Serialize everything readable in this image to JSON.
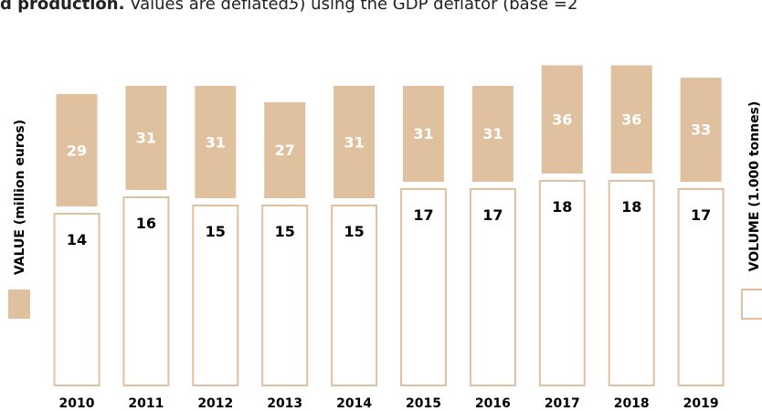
{
  "header": {
    "bold_text": "d production.",
    "plain_text": " Values are deflated",
    "italic_text": "5",
    "rest_text": ") using the GDP deflator (base =2"
  },
  "colors": {
    "value": "#dfc09f",
    "volume_fill": "#ffffff",
    "volume_stroke": "#dfc09f"
  },
  "chart_data": {
    "type": "bar",
    "categories": [
      "2010",
      "2011",
      "2012",
      "2013",
      "2014",
      "2015",
      "2016",
      "2017",
      "2018",
      "2019"
    ],
    "series": [
      {
        "name": "VALUE (million euros)",
        "values": [
          29,
          31,
          31,
          27,
          31,
          31,
          31,
          36,
          36,
          33
        ]
      },
      {
        "name": "VOLUME (1.000 tonnes)",
        "values": [
          14,
          16,
          15,
          15,
          15,
          17,
          17,
          18,
          18,
          17
        ]
      }
    ],
    "legend": [
      "left",
      "right"
    ],
    "grid": false
  }
}
